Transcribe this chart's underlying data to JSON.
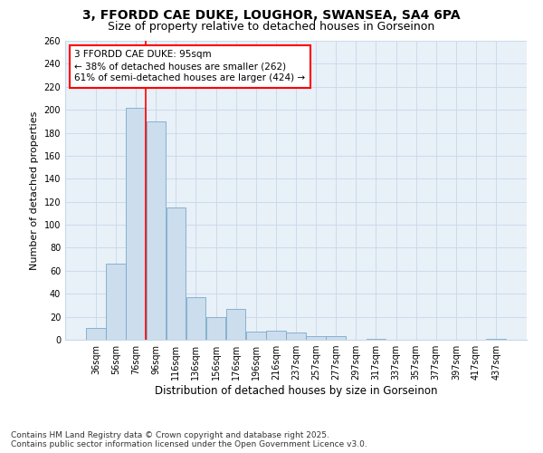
{
  "title": "3, FFORDD CAE DUKE, LOUGHOR, SWANSEA, SA4 6PA",
  "subtitle": "Size of property relative to detached houses in Gorseinon",
  "xlabel": "Distribution of detached houses by size in Gorseinon",
  "ylabel": "Number of detached properties",
  "bar_labels": [
    "36sqm",
    "56sqm",
    "76sqm",
    "96sqm",
    "116sqm",
    "136sqm",
    "156sqm",
    "176sqm",
    "196sqm",
    "216sqm",
    "237sqm",
    "257sqm",
    "277sqm",
    "297sqm",
    "317sqm",
    "337sqm",
    "357sqm",
    "377sqm",
    "397sqm",
    "417sqm",
    "437sqm"
  ],
  "bar_values": [
    10,
    66,
    202,
    190,
    115,
    37,
    20,
    27,
    7,
    8,
    6,
    3,
    3,
    0,
    1,
    0,
    0,
    0,
    0,
    0,
    1
  ],
  "bar_color": "#ccdded",
  "bar_edgecolor": "#7aaaca",
  "grid_color": "#c8d8e8",
  "bg_color": "#e8f0f8",
  "annotation_line1": "3 FFORDD CAE DUKE: 95sqm",
  "annotation_line2": "← 38% of detached houses are smaller (262)",
  "annotation_line3": "61% of semi-detached houses are larger (424) →",
  "redline_bar_index": 2.5,
  "ylim": [
    0,
    260
  ],
  "yticks": [
    0,
    20,
    40,
    60,
    80,
    100,
    120,
    140,
    160,
    180,
    200,
    220,
    240,
    260
  ],
  "footer_line1": "Contains HM Land Registry data © Crown copyright and database right 2025.",
  "footer_line2": "Contains public sector information licensed under the Open Government Licence v3.0.",
  "title_fontsize": 10,
  "subtitle_fontsize": 9,
  "xlabel_fontsize": 8.5,
  "ylabel_fontsize": 8,
  "tick_fontsize": 7,
  "annotation_fontsize": 7.5,
  "footer_fontsize": 6.5
}
